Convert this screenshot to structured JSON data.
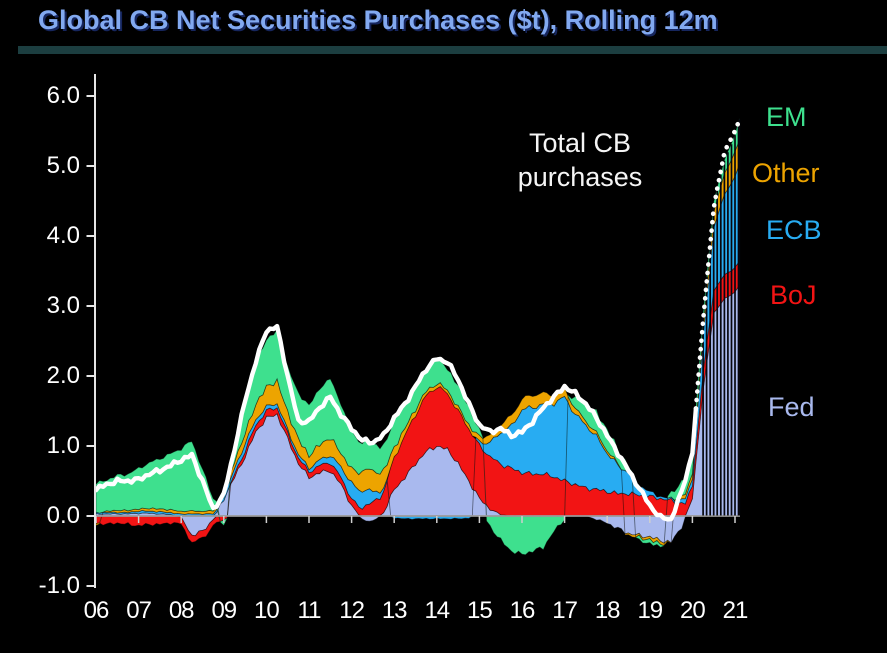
{
  "header": {
    "title": "Global CB Net Securities Purchases ($t), Rolling 12m"
  },
  "annotation": {
    "line1": "Total CB",
    "line2": "purchases"
  },
  "colors": {
    "background": "#000000",
    "title_text": "#82a9f0",
    "divider_bar": "#1c3e40",
    "axis_line": "#e6e6e6",
    "zero_line": "#9a9a9a",
    "tick_label": "#ffffff",
    "total_line": "#ffffff"
  },
  "chart_data": {
    "type": "area",
    "stacked": true,
    "title": "Global CB Net Securities Purchases ($t), Rolling 12m",
    "xlabel": "",
    "ylabel": "",
    "ylim": [
      -1.0,
      6.3
    ],
    "xlim": [
      2006.0,
      2021.1
    ],
    "grid": false,
    "legend_position": "right",
    "x": [
      2006.0,
      2006.25,
      2006.5,
      2006.75,
      2007.0,
      2007.25,
      2007.5,
      2007.75,
      2008.0,
      2008.25,
      2008.5,
      2008.75,
      2009.0,
      2009.25,
      2009.5,
      2009.75,
      2010.0,
      2010.25,
      2010.5,
      2010.75,
      2011.0,
      2011.25,
      2011.5,
      2011.75,
      2012.0,
      2012.25,
      2012.5,
      2012.75,
      2013.0,
      2013.25,
      2013.5,
      2013.75,
      2014.0,
      2014.25,
      2014.5,
      2014.75,
      2015.0,
      2015.25,
      2015.5,
      2015.75,
      2016.0,
      2016.25,
      2016.5,
      2016.75,
      2017.0,
      2017.25,
      2017.5,
      2017.75,
      2018.0,
      2018.25,
      2018.5,
      2018.75,
      2019.0,
      2019.25,
      2019.5,
      2019.75,
      2020.0,
      2020.25,
      2020.5,
      2020.75,
      2021.0,
      2021.1
    ],
    "series": [
      {
        "name": "Fed",
        "color": "#a9b9ee",
        "values": [
          0.03,
          0.03,
          0.03,
          0.03,
          0.04,
          0.04,
          0.03,
          0.02,
          -0.02,
          -0.28,
          -0.22,
          -0.05,
          0.25,
          0.55,
          0.85,
          1.2,
          1.4,
          1.45,
          1.1,
          0.75,
          0.55,
          0.62,
          0.65,
          0.45,
          0.15,
          -0.05,
          -0.08,
          0.05,
          0.38,
          0.55,
          0.75,
          0.92,
          1.0,
          0.95,
          0.75,
          0.5,
          0.25,
          0.1,
          0.02,
          0.0,
          0.0,
          0.0,
          0.0,
          0.0,
          0.0,
          0.0,
          0.0,
          -0.05,
          -0.1,
          -0.18,
          -0.25,
          -0.28,
          -0.3,
          -0.35,
          -0.38,
          -0.15,
          0.25,
          1.8,
          2.9,
          3.1,
          3.2,
          3.3
        ]
      },
      {
        "name": "BoJ",
        "color": "#f21414",
        "values": [
          -0.1,
          -0.12,
          -0.1,
          -0.12,
          -0.14,
          -0.12,
          -0.12,
          -0.1,
          -0.1,
          -0.1,
          -0.1,
          -0.1,
          -0.06,
          0.05,
          0.08,
          0.1,
          0.1,
          0.1,
          0.08,
          0.08,
          0.08,
          0.1,
          0.12,
          0.1,
          0.1,
          0.12,
          0.2,
          0.3,
          0.45,
          0.6,
          0.7,
          0.8,
          0.85,
          0.8,
          0.75,
          0.75,
          0.75,
          0.75,
          0.72,
          0.68,
          0.62,
          0.6,
          0.6,
          0.56,
          0.5,
          0.45,
          0.4,
          0.38,
          0.35,
          0.32,
          0.32,
          0.3,
          0.28,
          0.25,
          0.22,
          0.18,
          0.18,
          0.25,
          0.32,
          0.34,
          0.35,
          0.33
        ]
      },
      {
        "name": "ECB",
        "color": "#28acf2",
        "values": [
          0.02,
          0.02,
          0.02,
          0.02,
          0.03,
          0.03,
          0.03,
          0.03,
          0.03,
          0.03,
          0.03,
          0.03,
          0.05,
          0.08,
          0.1,
          0.08,
          0.06,
          0.06,
          0.05,
          0.05,
          0.05,
          0.08,
          0.1,
          0.15,
          0.22,
          0.25,
          0.15,
          0.05,
          -0.03,
          -0.04,
          -0.04,
          -0.04,
          -0.04,
          -0.04,
          -0.04,
          -0.03,
          0.05,
          0.2,
          0.45,
          0.6,
          0.9,
          0.95,
          1.0,
          1.05,
          1.2,
          1.0,
          0.9,
          0.75,
          0.55,
          0.4,
          0.3,
          0.15,
          0.06,
          0.03,
          0.02,
          0.05,
          0.1,
          0.5,
          0.9,
          1.15,
          1.3,
          1.38
        ]
      },
      {
        "name": "Other",
        "color": "#eda400",
        "values": [
          -0.03,
          0.02,
          0.03,
          0.03,
          0.03,
          0.04,
          0.04,
          0.04,
          0.04,
          0.04,
          0.04,
          0.04,
          0.05,
          0.1,
          0.15,
          0.22,
          0.28,
          0.32,
          0.25,
          0.22,
          0.18,
          0.22,
          0.25,
          0.2,
          0.2,
          0.28,
          0.3,
          0.25,
          0.15,
          0.1,
          0.08,
          0.06,
          0.05,
          0.05,
          0.05,
          0.06,
          0.08,
          0.1,
          0.12,
          0.15,
          0.15,
          0.18,
          0.15,
          0.12,
          0.12,
          0.08,
          0.06,
          0.05,
          0.04,
          0.02,
          -0.03,
          -0.03,
          -0.04,
          -0.05,
          0.0,
          0.05,
          0.08,
          0.15,
          0.22,
          0.3,
          0.35,
          0.35
        ]
      },
      {
        "name": "EM",
        "color": "#3ee08e",
        "values": [
          0.42,
          0.45,
          0.5,
          0.52,
          0.58,
          0.65,
          0.72,
          0.8,
          0.9,
          1.0,
          0.6,
          0.18,
          -0.1,
          0.2,
          0.45,
          0.6,
          0.68,
          0.72,
          0.65,
          0.65,
          0.72,
          0.8,
          0.85,
          0.7,
          0.55,
          0.4,
          0.4,
          0.35,
          0.4,
          0.35,
          0.35,
          0.32,
          0.35,
          0.3,
          0.32,
          0.25,
          0.1,
          -0.15,
          -0.35,
          -0.5,
          -0.55,
          -0.5,
          -0.45,
          -0.22,
          -0.05,
          0.15,
          0.25,
          0.3,
          0.3,
          0.22,
          0.1,
          -0.05,
          -0.05,
          -0.05,
          0.08,
          0.2,
          0.3,
          0.2,
          0.15,
          0.2,
          0.25,
          0.32
        ]
      }
    ],
    "total": {
      "name": "Total CB purchases",
      "color": "#ffffff",
      "values": [
        0.38,
        0.45,
        0.5,
        0.5,
        0.52,
        0.6,
        0.65,
        0.72,
        0.8,
        0.87,
        0.5,
        0.1,
        0.3,
        0.95,
        1.65,
        2.2,
        2.65,
        2.7,
        2.0,
        1.35,
        1.35,
        1.55,
        1.7,
        1.45,
        1.25,
        1.08,
        1.05,
        1.15,
        1.4,
        1.6,
        1.85,
        2.1,
        2.25,
        2.2,
        1.95,
        1.6,
        1.3,
        1.2,
        1.25,
        1.15,
        1.2,
        1.35,
        1.55,
        1.7,
        1.85,
        1.75,
        1.6,
        1.4,
        1.15,
        0.9,
        0.65,
        0.4,
        0.15,
        -0.02,
        -0.05,
        0.35,
        0.9,
        2.8,
        4.4,
        5.2,
        5.5,
        5.65
      ]
    },
    "yticks": {
      "values": [
        6,
        5,
        4,
        3,
        2,
        1,
        0,
        -1
      ],
      "labels": [
        "6.0",
        "5.0",
        "4.0",
        "3.0",
        "2.0",
        "1.0",
        "0.0",
        "-1.0"
      ]
    },
    "xticks": {
      "values": [
        2006,
        2007,
        2008,
        2009,
        2010,
        2011,
        2012,
        2013,
        2014,
        2015,
        2016,
        2017,
        2018,
        2019,
        2020,
        2021
      ],
      "labels": [
        "06",
        "07",
        "08",
        "09",
        "10",
        "11",
        "12",
        "13",
        "14",
        "15",
        "16",
        "17",
        "18",
        "19",
        "20",
        "21"
      ]
    },
    "legend": [
      {
        "label": "EM",
        "color": "#3ee08e"
      },
      {
        "label": "Other",
        "color": "#eda400"
      },
      {
        "label": "ECB",
        "color": "#28acf2"
      },
      {
        "label": "BoJ",
        "color": "#f21414"
      },
      {
        "label": "Fed",
        "color": "#a9b9ee"
      }
    ]
  }
}
